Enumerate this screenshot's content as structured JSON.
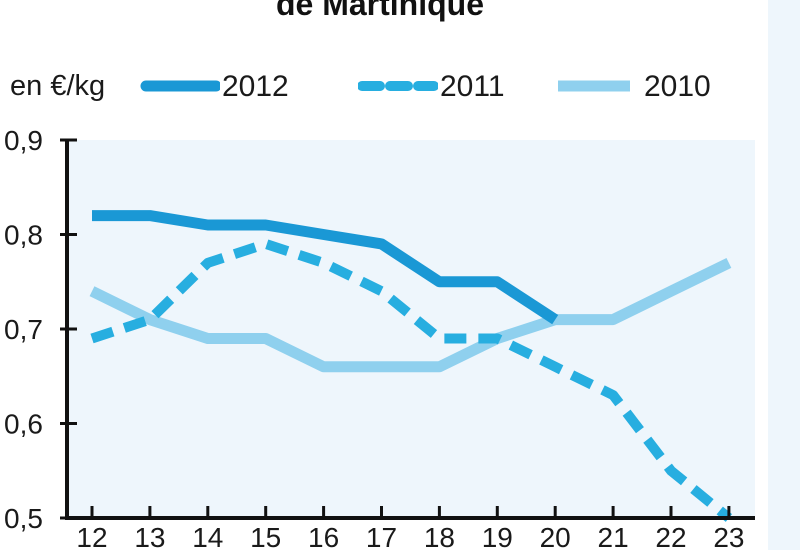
{
  "chart_data": {
    "type": "line",
    "title": "de Martinique",
    "unit_label": "en €/kg",
    "x": [
      "12",
      "13",
      "14",
      "15",
      "16",
      "17",
      "18",
      "19",
      "20",
      "21",
      "22",
      "23"
    ],
    "ylim": [
      0.5,
      0.9
    ],
    "yticks": [
      "0,5",
      "0,6",
      "0,7",
      "0,8",
      "0,9"
    ],
    "ytick_values": [
      0.5,
      0.6,
      0.7,
      0.8,
      0.9
    ],
    "grid": false,
    "legend_position": "top",
    "series": [
      {
        "name": "2012",
        "color": "#1a98d5",
        "style": "solid",
        "values": [
          0.82,
          0.82,
          0.81,
          0.81,
          0.8,
          0.79,
          0.75,
          0.75,
          0.71,
          null,
          null,
          null
        ]
      },
      {
        "name": "2011",
        "color": "#27aee0",
        "style": "dashed",
        "values": [
          0.69,
          0.71,
          0.77,
          0.79,
          0.77,
          0.74,
          0.69,
          0.69,
          0.66,
          0.63,
          0.55,
          0.5
        ]
      },
      {
        "name": "2010",
        "color": "#8fd0ee",
        "style": "solid",
        "values": [
          0.74,
          0.71,
          0.69,
          0.69,
          0.66,
          0.66,
          0.66,
          0.69,
          0.71,
          0.71,
          0.74,
          0.77
        ]
      }
    ]
  }
}
